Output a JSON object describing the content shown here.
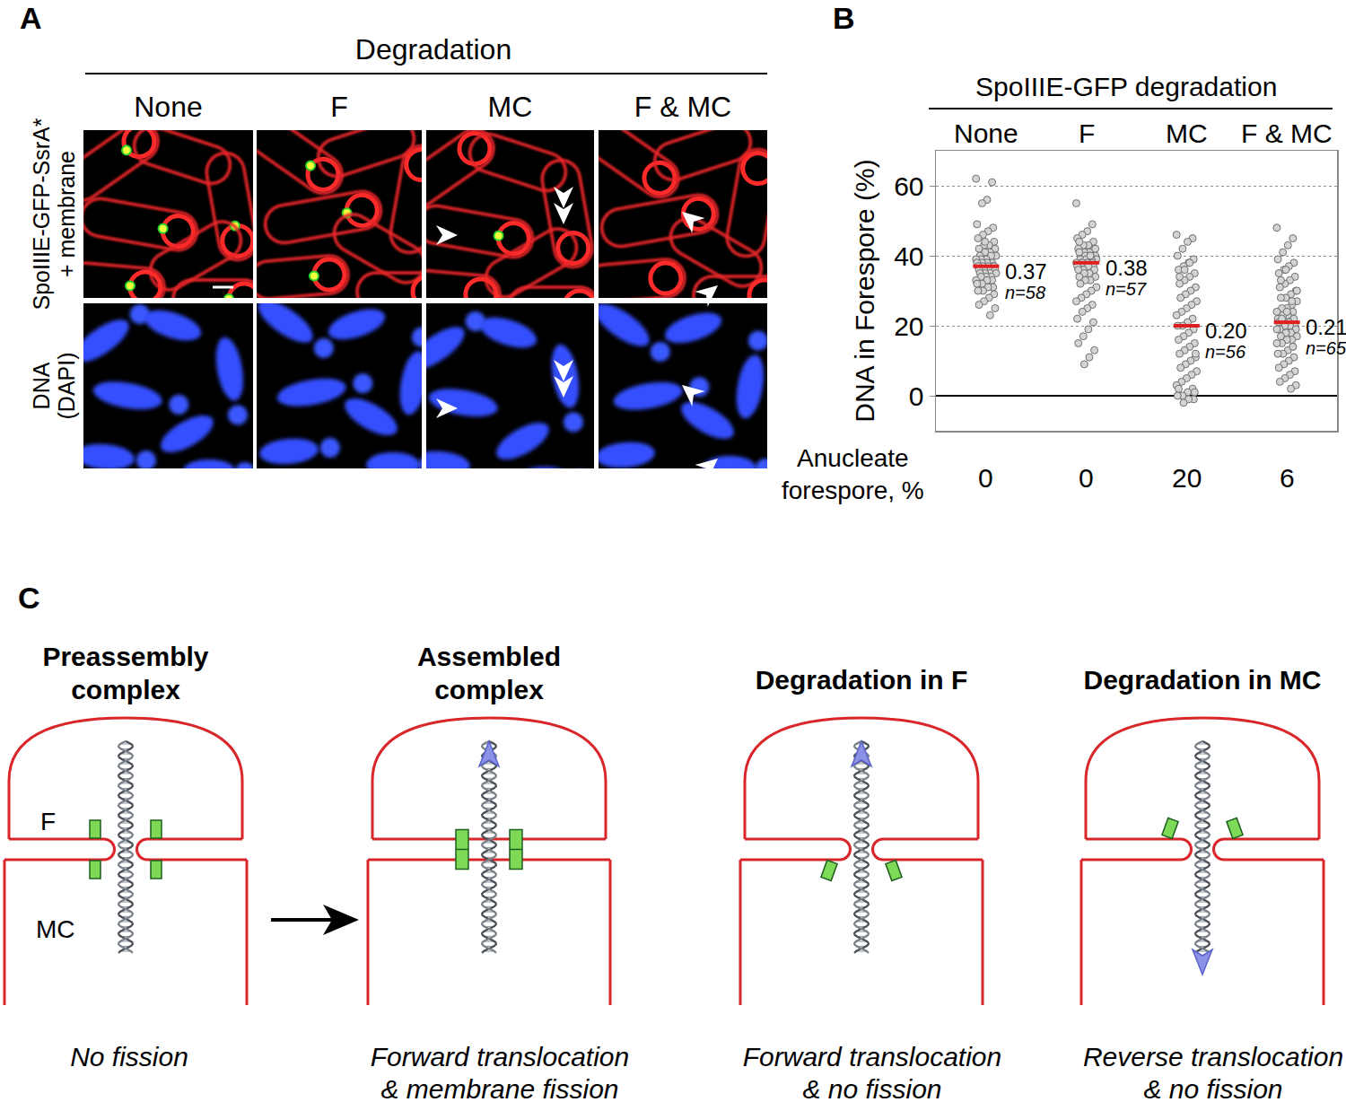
{
  "panel_a": {
    "label": "A",
    "header": "Degradation",
    "columns": [
      "None",
      "F",
      "MC",
      "F & MC"
    ],
    "rows": [
      [
        "SpoIIIE-GFP-SsrA*",
        "+ membrane"
      ],
      [
        "DNA",
        "(DAPI)"
      ]
    ]
  },
  "chart_data": {
    "label": "B",
    "type": "scatter",
    "title": "SpoIIIE-GFP degradation",
    "y_label": "DNA in Forespore (%)",
    "categories": [
      "None",
      "F",
      "MC",
      "F & MC"
    ],
    "values": [
      [
        62,
        61,
        56,
        55,
        49,
        48,
        47,
        46,
        45,
        44,
        43,
        43,
        42,
        42,
        41,
        41,
        40,
        40,
        40,
        39,
        39,
        39,
        38,
        38,
        38,
        38,
        37,
        37,
        37,
        37,
        37,
        36,
        36,
        36,
        36,
        35,
        35,
        35,
        35,
        34,
        34,
        34,
        33,
        33,
        33,
        32,
        32,
        31,
        31,
        30,
        30,
        29,
        28,
        27,
        26,
        25,
        23,
        44
      ],
      [
        55,
        49,
        47,
        46,
        45,
        44,
        43,
        43,
        42,
        42,
        41,
        41,
        41,
        40,
        40,
        40,
        39,
        39,
        39,
        39,
        38,
        38,
        38,
        38,
        38,
        37,
        37,
        37,
        36,
        36,
        36,
        35,
        35,
        34,
        34,
        33,
        33,
        32,
        31,
        30,
        29,
        28,
        27,
        26,
        25,
        24,
        22,
        21,
        19,
        17,
        15,
        13,
        11,
        9,
        44,
        42,
        40
      ],
      [
        46,
        45,
        44,
        42,
        40,
        39,
        38,
        37,
        36,
        35,
        34,
        33,
        32,
        31,
        30,
        29,
        28,
        27,
        26,
        25,
        24,
        23,
        22,
        21,
        20,
        20,
        19,
        18,
        17,
        16,
        15,
        14,
        13,
        12,
        11,
        10,
        9,
        8,
        7,
        6,
        5,
        4,
        3,
        2,
        1,
        0,
        0,
        -1,
        -1,
        -2,
        2,
        1,
        38,
        36,
        34,
        12
      ],
      [
        48,
        45,
        43,
        41,
        39,
        38,
        37,
        36,
        35,
        34,
        33,
        32,
        31,
        30,
        29,
        28,
        28,
        27,
        26,
        25,
        25,
        24,
        24,
        23,
        23,
        22,
        22,
        21,
        21,
        21,
        20,
        20,
        20,
        19,
        19,
        18,
        18,
        17,
        17,
        16,
        16,
        15,
        15,
        14,
        13,
        12,
        12,
        11,
        10,
        9,
        8,
        7,
        6,
        5,
        4,
        3,
        2,
        36,
        33,
        30,
        27,
        24,
        22,
        19,
        14
      ]
    ],
    "medians": [
      37,
      38,
      20,
      21
    ],
    "median_labels": [
      "0.37",
      "0.38",
      "0.20",
      "0.21"
    ],
    "n_labels": [
      "n=58",
      "n=57",
      "n=56",
      "n=65"
    ],
    "row_label": [
      "Anucleate",
      "forespore, %"
    ],
    "anucleate_forespore": [
      0,
      0,
      20,
      6
    ],
    "color": "#d4d4d4",
    "marker": "circle",
    "ylim": [
      -10,
      70
    ],
    "yticks": [
      0,
      20,
      40,
      60
    ],
    "grid": true,
    "tick_labels": "y"
  },
  "panel_c": {
    "label": "C",
    "compartments": [
      "F",
      "MC"
    ],
    "steps": [
      {
        "title": [
          "Preassembly",
          "complex"
        ],
        "caption": [
          "No fission"
        ]
      },
      {
        "title": [
          "Assembled",
          "complex"
        ],
        "caption": [
          "Forward translocation",
          "& membrane fission"
        ]
      },
      {
        "title": [
          "Degradation in F"
        ],
        "caption": [
          "Forward translocation",
          "& no fission"
        ]
      },
      {
        "title": [
          "Degradation in MC"
        ],
        "caption": [
          "Reverse translocation",
          "& no fission"
        ]
      }
    ]
  }
}
